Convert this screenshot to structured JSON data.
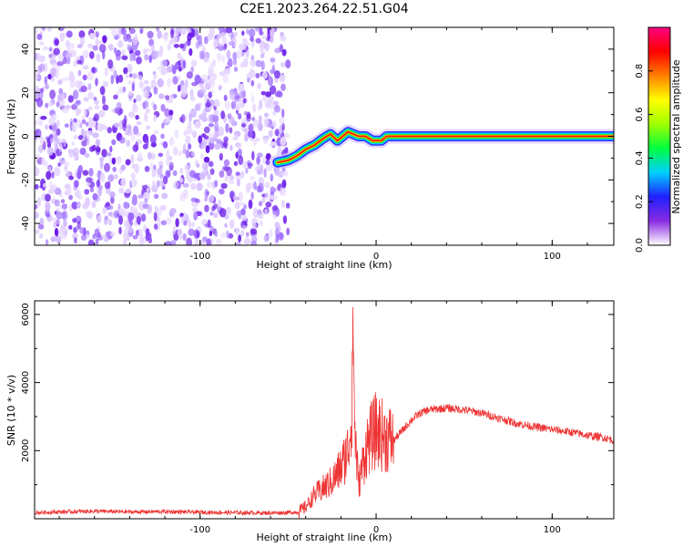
{
  "figure_title": "C2E1.2023.264.22.51.G04",
  "chart_data": [
    {
      "type": "heatmap",
      "xlabel": "Height of straight line (km)",
      "ylabel": "Frequency (Hz)",
      "xlim": [
        -194,
        135
      ],
      "ylim": [
        -50,
        50
      ],
      "x_ticks": [
        -100,
        0,
        100
      ],
      "y_ticks": [
        -40,
        -20,
        0,
        20,
        40
      ],
      "grid": false,
      "noise_region": {
        "x_from": -194,
        "x_to": -50,
        "description_level": "low"
      },
      "signal_trace": {
        "x": [
          -56,
          -50,
          -45,
          -40,
          -35,
          -30,
          -26,
          -22,
          -19,
          -16,
          -13,
          -10,
          -6,
          -2,
          0,
          3,
          6,
          10,
          20,
          40,
          60,
          80,
          100,
          120,
          135
        ],
        "y": [
          -12,
          -11,
          -9,
          -6,
          -4,
          -1,
          1,
          -2,
          0,
          2,
          1,
          0,
          0,
          -2,
          -2,
          -2,
          0,
          0,
          0,
          0,
          0,
          0,
          0,
          0,
          0
        ]
      },
      "colorbar": {
        "label": "Normalized spectral amplitude",
        "range": [
          0,
          1
        ],
        "ticks": [
          "0.0",
          "0.2",
          "0.4",
          "0.6",
          "0.8"
        ],
        "colors": [
          "#ffffff",
          "#8a2be2",
          "#2020ff",
          "#00d0ff",
          "#00ff40",
          "#a0ff00",
          "#ffff00",
          "#ff8000",
          "#ff0000",
          "#ff0080"
        ]
      }
    },
    {
      "type": "line",
      "xlabel": "Height of straight line (km)",
      "ylabel": "SNR (10 * v/v)",
      "xlim": [
        -194,
        135
      ],
      "ylim": [
        0,
        6400
      ],
      "x_ticks": [
        -100,
        0,
        100
      ],
      "y_ticks": [
        2000,
        4000,
        6000
      ],
      "grid": false,
      "series": [
        {
          "color": "#ee3333",
          "x": [
            -194,
            -180,
            -160,
            -140,
            -120,
            -100,
            -80,
            -60,
            -50,
            -44,
            -40,
            -35,
            -30,
            -25,
            -20,
            -16,
            -14,
            -13,
            -12,
            -10,
            -8,
            -5,
            0,
            5,
            10,
            15,
            20,
            25,
            30,
            40,
            50,
            60,
            70,
            80,
            90,
            100,
            110,
            120,
            130,
            135
          ],
          "y": [
            180,
            200,
            220,
            200,
            210,
            190,
            180,
            170,
            180,
            200,
            350,
            700,
            900,
            1100,
            1500,
            2000,
            3000,
            6400,
            2500,
            1000,
            1500,
            2200,
            2600,
            2400,
            2300,
            2600,
            2900,
            3100,
            3200,
            3250,
            3200,
            3100,
            2950,
            2800,
            2700,
            2620,
            2550,
            2450,
            2380,
            2300
          ]
        }
      ]
    }
  ]
}
